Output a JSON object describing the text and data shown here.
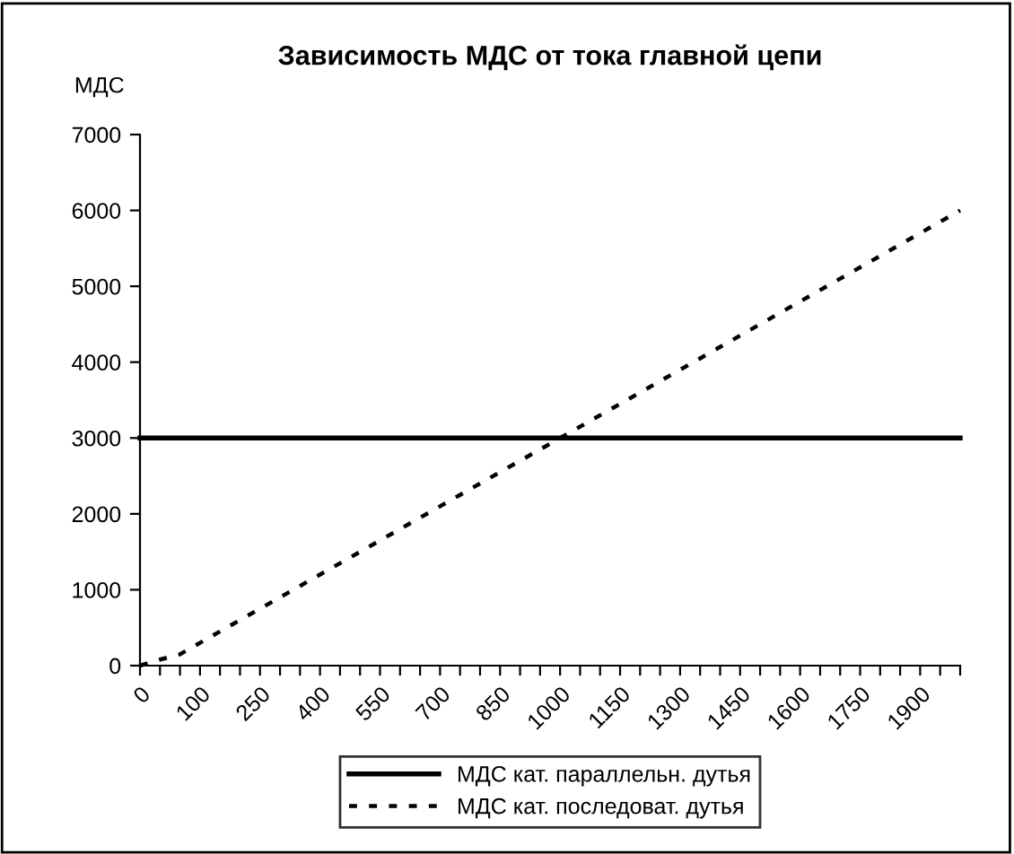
{
  "chart_data": {
    "type": "line",
    "title": "Зависимость МДС от тока главной цепи",
    "ylabel": "МДС",
    "categories": [
      "0",
      null,
      null,
      "100",
      null,
      null,
      "250",
      null,
      null,
      "400",
      null,
      null,
      "550",
      null,
      null,
      "700",
      null,
      null,
      "850",
      null,
      null,
      "1000",
      null,
      null,
      "1150",
      null,
      null,
      "1300",
      null,
      null,
      "1450",
      null,
      null,
      "1600",
      null,
      null,
      "1750",
      null,
      null,
      "1900",
      null,
      null
    ],
    "series": [
      {
        "name": "МДС кат. параллельн. дутья",
        "color": "#000000",
        "line_style": "solid",
        "values": [
          3000,
          3000,
          3000,
          3000,
          3000,
          3000,
          3000,
          3000,
          3000,
          3000,
          3000,
          3000,
          3000,
          3000,
          3000,
          3000,
          3000,
          3000,
          3000,
          3000,
          3000,
          3000,
          3000,
          3000,
          3000,
          3000,
          3000,
          3000,
          3000,
          3000,
          3000,
          3000,
          3000,
          3000,
          3000,
          3000,
          3000,
          3000,
          3000,
          3000,
          3000,
          3000
        ]
      },
      {
        "name": "МДС кат. последоват. дутья",
        "color": "#000000",
        "line_style": "dotted",
        "values": [
          0,
          80,
          150,
          300,
          450,
          600,
          750,
          900,
          1050,
          1200,
          1350,
          1500,
          1650,
          1800,
          1950,
          2100,
          2250,
          2400,
          2550,
          2700,
          2850,
          3000,
          3150,
          3300,
          3450,
          3600,
          3750,
          3900,
          4050,
          4200,
          4350,
          4500,
          4650,
          4800,
          4950,
          5100,
          5250,
          5400,
          5550,
          5700,
          5850,
          6000
        ]
      }
    ],
    "ylim": [
      0,
      7000
    ],
    "yticks": [
      0,
      1000,
      2000,
      3000,
      4000,
      5000,
      6000,
      7000
    ],
    "grid": false,
    "legend": "bottom",
    "marker": "none"
  }
}
